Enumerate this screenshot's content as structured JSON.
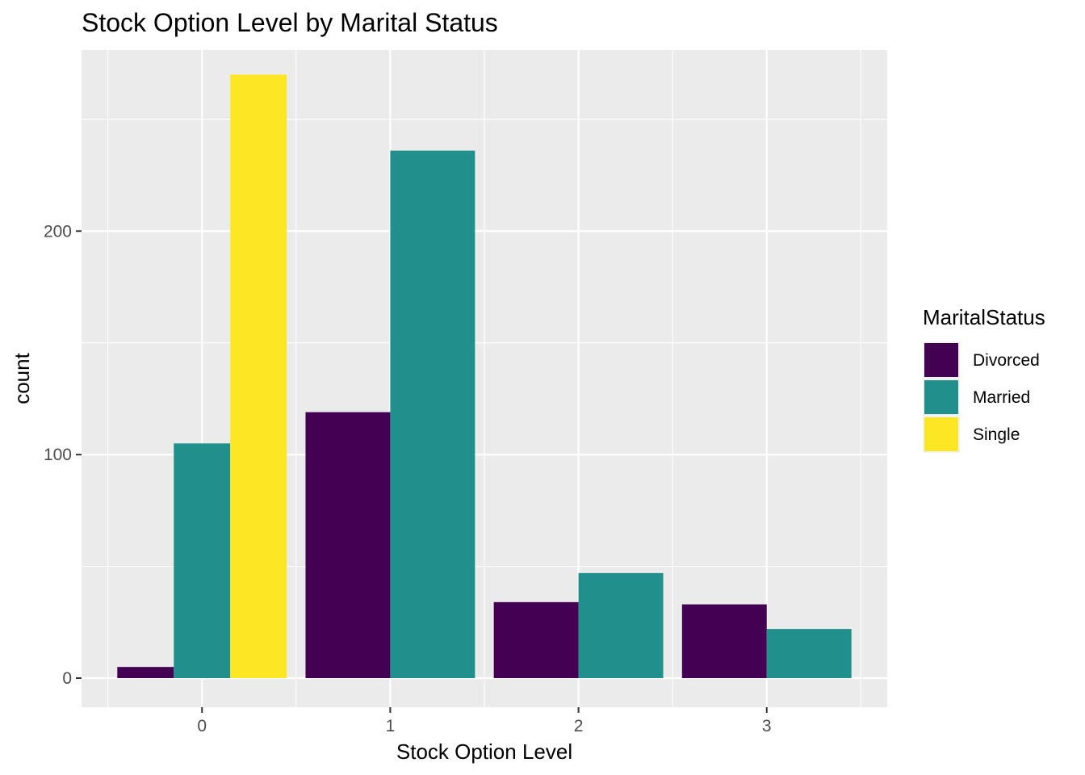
{
  "chart_data": {
    "type": "bar",
    "title": "Stock Option Level by Marital Status",
    "xlabel": "Stock Option Level",
    "ylabel": "count",
    "categories": [
      "0",
      "1",
      "2",
      "3"
    ],
    "yticks": [
      0,
      100,
      200
    ],
    "ylim": [
      -13,
      281
    ],
    "grid": true,
    "legend": {
      "title": "MaritalStatus",
      "position": "right"
    },
    "series": [
      {
        "name": "Divorced",
        "color": "#440154",
        "values": [
          5,
          119,
          34,
          33
        ]
      },
      {
        "name": "Married",
        "color": "#21908C",
        "values": [
          105,
          236,
          47,
          22
        ]
      },
      {
        "name": "Single",
        "color": "#FDE725",
        "values": [
          270,
          null,
          null,
          null
        ]
      }
    ]
  }
}
